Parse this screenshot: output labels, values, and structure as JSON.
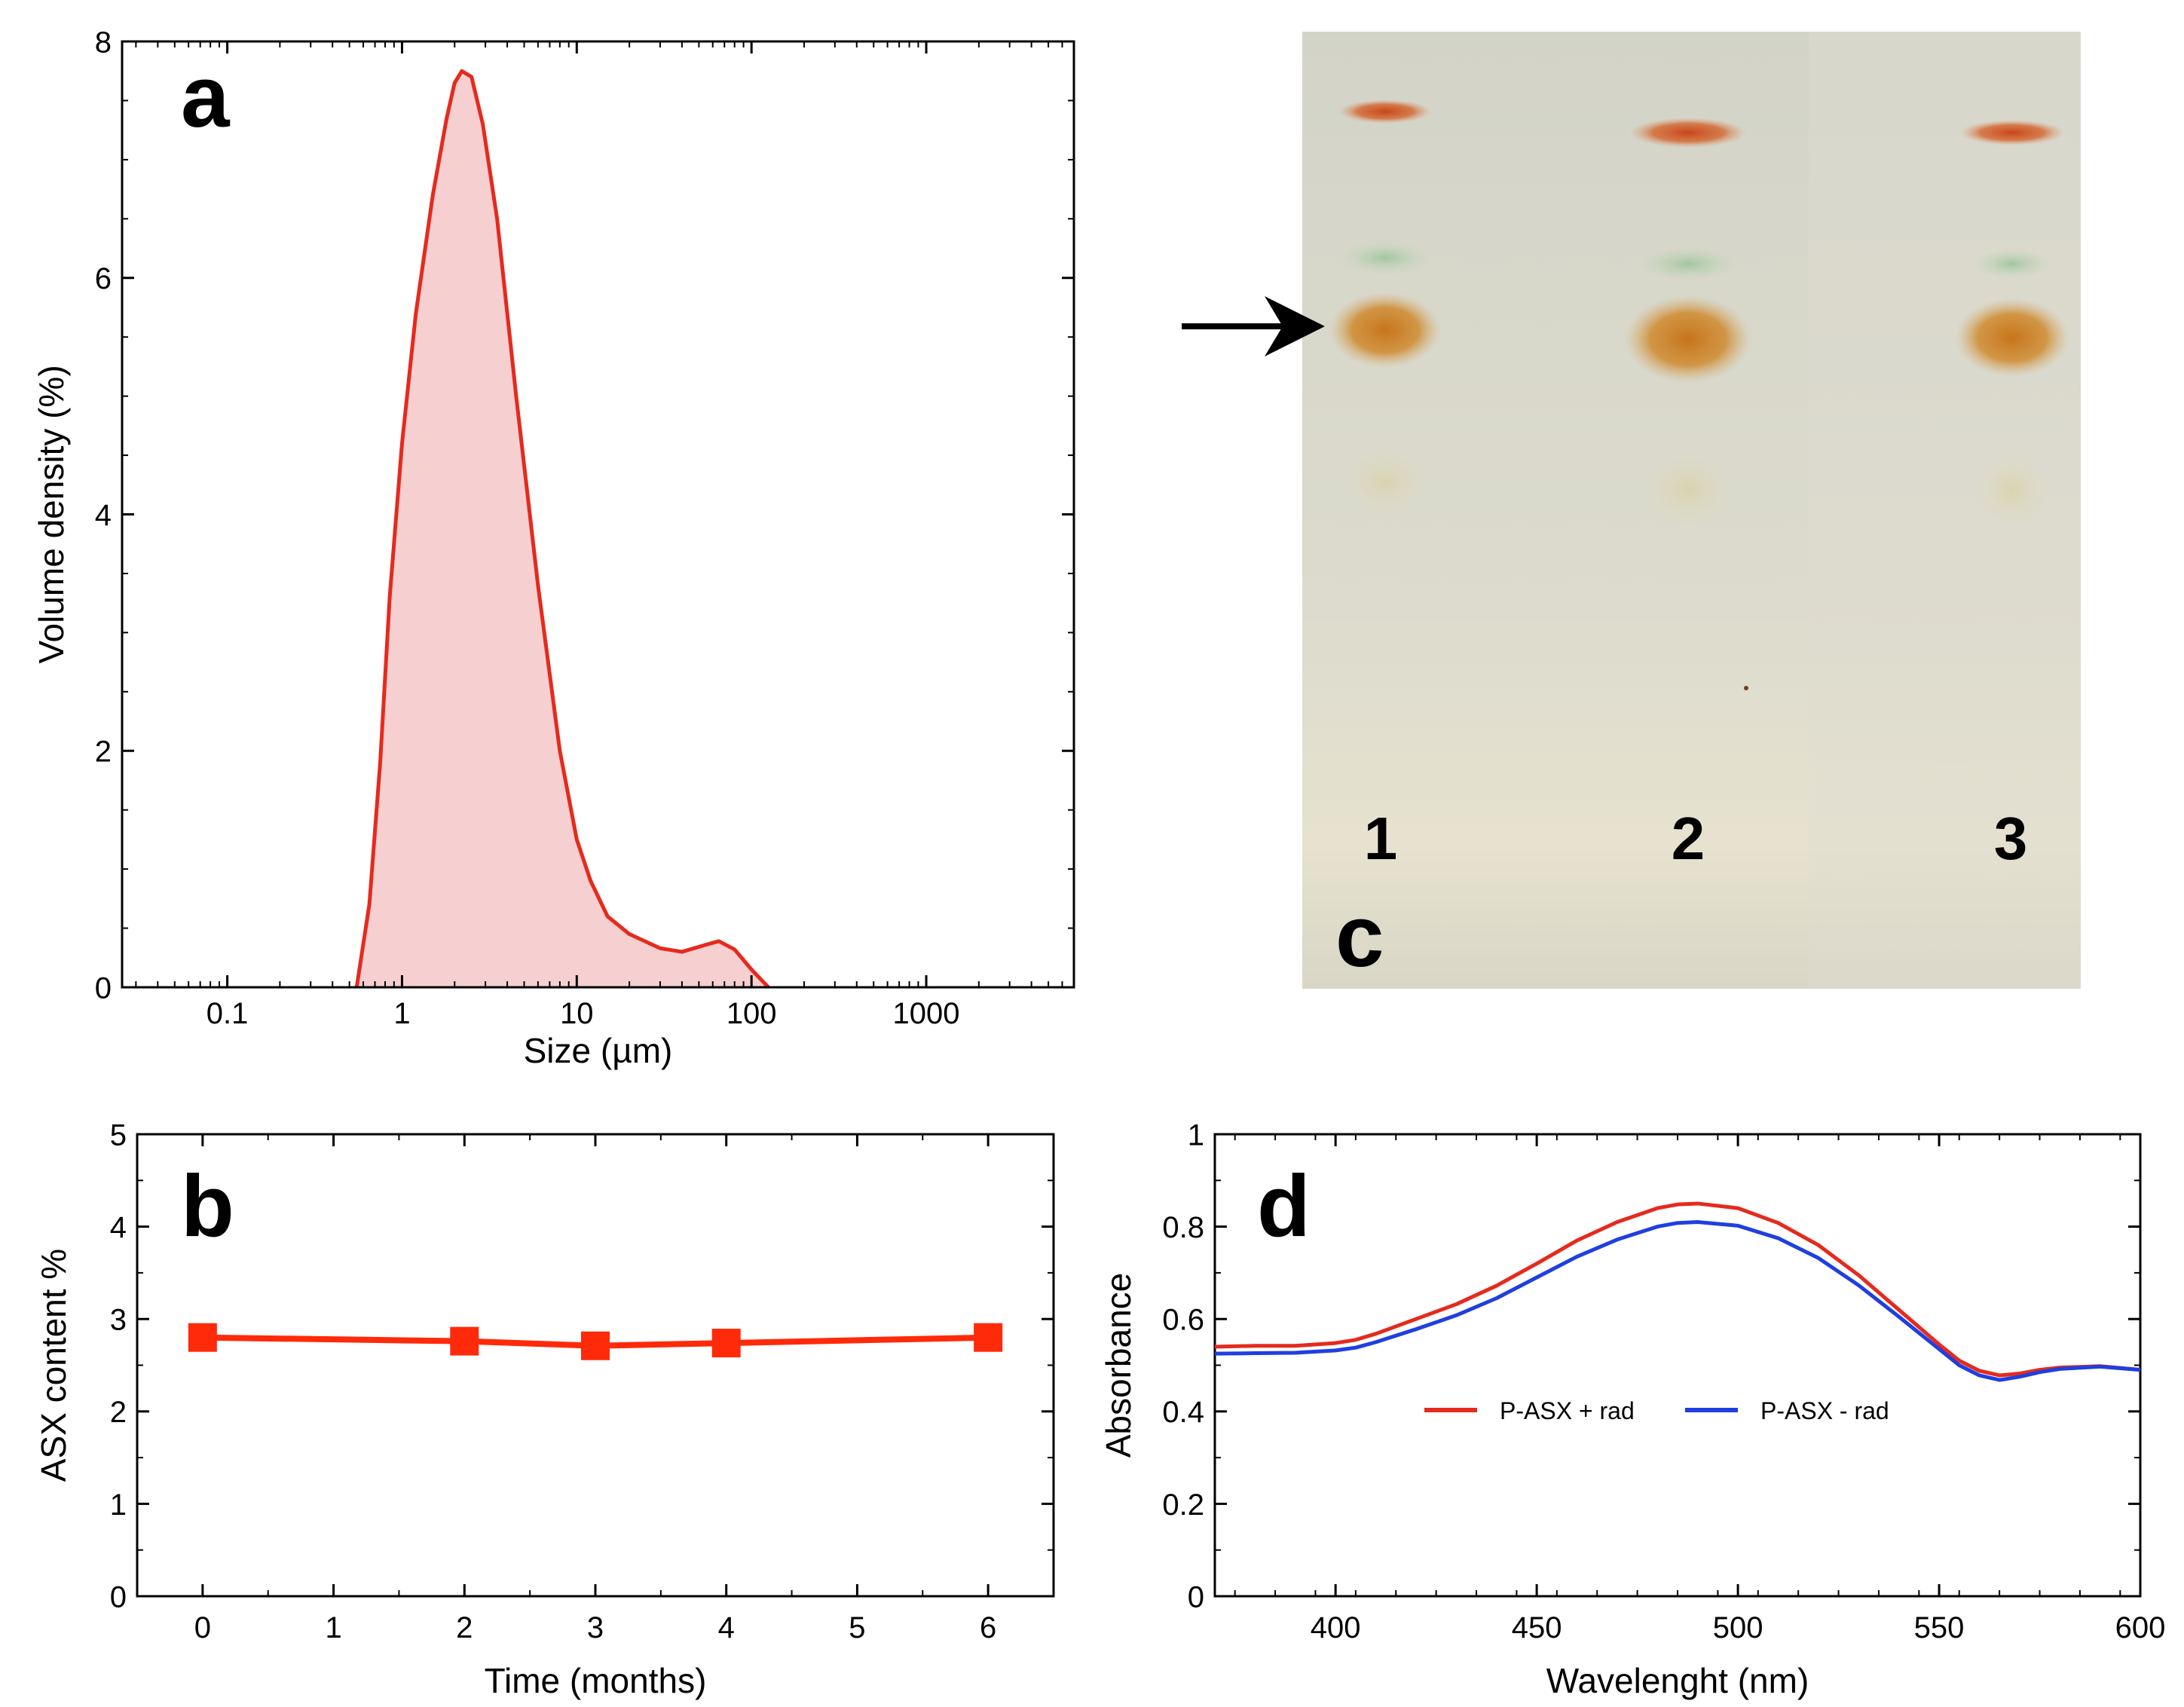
{
  "panels": {
    "a": {
      "letter": "a"
    },
    "b": {
      "letter": "b"
    },
    "c": {
      "letter": "c",
      "lanes": [
        "1",
        "2",
        "3"
      ]
    },
    "d": {
      "letter": "d"
    }
  },
  "colors": {
    "red_line": "#e52a1e",
    "red_fill": "#f6cfd0",
    "blue_line": "#1f3fe0",
    "marker_red": "#ff2a0a",
    "tlc_background": "#dad8ca",
    "band_orange": "#c87a1e",
    "band_red_orange": "#d2561e",
    "band_green": "#9cc29a"
  },
  "chart_data": [
    {
      "id": "a",
      "type": "area",
      "xlabel": "Size (µm)",
      "ylabel": "Volume density (%)",
      "xscale": "log",
      "xlim": [
        0.025,
        7000
      ],
      "ylim": [
        0,
        8
      ],
      "xticks": [
        0.1,
        1,
        10,
        100,
        1000
      ],
      "xtick_labels": [
        "0.1",
        "1",
        "10",
        "100",
        "1000"
      ],
      "yticks": [
        0,
        2,
        4,
        6,
        8
      ],
      "ytick_labels": [
        "0",
        "2",
        "4",
        "6",
        "8"
      ],
      "x": [
        0.55,
        0.65,
        0.75,
        0.85,
        1.0,
        1.2,
        1.5,
        1.8,
        2.0,
        2.2,
        2.5,
        2.9,
        3.5,
        4.5,
        6.0,
        8.0,
        10,
        12,
        15,
        20,
        30,
        40,
        55,
        65,
        80,
        100,
        125
      ],
      "y": [
        0.0,
        0.7,
        1.9,
        3.3,
        4.6,
        5.7,
        6.7,
        7.35,
        7.65,
        7.75,
        7.7,
        7.3,
        6.5,
        5.0,
        3.4,
        2.0,
        1.25,
        0.9,
        0.6,
        0.45,
        0.33,
        0.3,
        0.36,
        0.39,
        0.32,
        0.15,
        0.0
      ]
    },
    {
      "id": "b",
      "type": "line",
      "xlabel": "Time (months)",
      "ylabel": "ASX content %",
      "xlim": [
        -0.5,
        6.5
      ],
      "ylim": [
        0,
        5
      ],
      "xticks": [
        0,
        1,
        2,
        3,
        4,
        5,
        6
      ],
      "yticks": [
        0,
        1,
        2,
        3,
        4,
        5
      ],
      "x": [
        0,
        2,
        3,
        4,
        6
      ],
      "y": [
        2.8,
        2.76,
        2.71,
        2.74,
        2.8
      ],
      "marker": "square"
    },
    {
      "id": "d",
      "type": "line",
      "xlabel": "Wavelenght (nm)",
      "ylabel": "Absorbance",
      "xlim": [
        370,
        600
      ],
      "ylim": [
        0,
        1
      ],
      "xticks": [
        400,
        450,
        500,
        550,
        600
      ],
      "yticks": [
        0,
        0.2,
        0.4,
        0.6,
        0.8,
        1
      ],
      "ytick_labels": [
        "0",
        "0.2",
        "0.4",
        "0.6",
        "0.8",
        "1"
      ],
      "legend_placement": "center",
      "series": [
        {
          "name": "P-ASX + rad",
          "x": [
            370,
            380,
            390,
            400,
            405,
            410,
            420,
            430,
            440,
            450,
            460,
            470,
            480,
            485,
            490,
            500,
            510,
            520,
            530,
            540,
            550,
            555,
            560,
            565,
            570,
            575,
            580,
            590,
            600
          ],
          "y": [
            0.54,
            0.542,
            0.542,
            0.548,
            0.555,
            0.568,
            0.6,
            0.632,
            0.672,
            0.72,
            0.77,
            0.81,
            0.84,
            0.848,
            0.85,
            0.84,
            0.808,
            0.76,
            0.695,
            0.62,
            0.545,
            0.51,
            0.488,
            0.478,
            0.482,
            0.49,
            0.495,
            0.498,
            0.49
          ]
        },
        {
          "name": "P-ASX - rad",
          "x": [
            370,
            380,
            390,
            400,
            405,
            410,
            420,
            430,
            440,
            450,
            460,
            470,
            480,
            485,
            490,
            500,
            510,
            520,
            530,
            540,
            550,
            555,
            560,
            565,
            570,
            575,
            580,
            590,
            600
          ],
          "y": [
            0.525,
            0.526,
            0.527,
            0.532,
            0.538,
            0.55,
            0.578,
            0.608,
            0.645,
            0.69,
            0.735,
            0.772,
            0.8,
            0.808,
            0.81,
            0.802,
            0.775,
            0.732,
            0.673,
            0.605,
            0.535,
            0.5,
            0.478,
            0.468,
            0.475,
            0.485,
            0.492,
            0.497,
            0.49
          ]
        }
      ]
    }
  ]
}
